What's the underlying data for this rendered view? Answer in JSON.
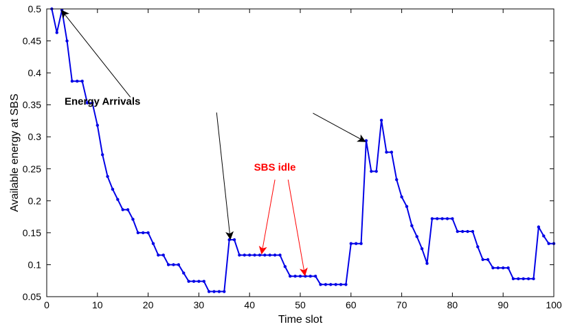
{
  "chart_data": {
    "type": "line",
    "title": "",
    "xlabel": "Time slot",
    "ylabel": "Available energy at SBS",
    "xlim": [
      0,
      100
    ],
    "ylim": [
      0.05,
      0.5
    ],
    "xticks": [
      0,
      10,
      20,
      30,
      40,
      50,
      60,
      70,
      80,
      90,
      100
    ],
    "xtick_labels": [
      "0",
      "10",
      "20",
      "30",
      "40",
      "50",
      "60",
      "70",
      "80",
      "90",
      "100"
    ],
    "yticks": [
      0.05,
      0.1,
      0.15,
      0.2,
      0.25,
      0.3,
      0.35,
      0.4,
      0.45,
      0.5
    ],
    "ytick_labels": [
      "0.05",
      "0.1",
      "0.15",
      "0.2",
      "0.25",
      "0.3",
      "0.35",
      "0.4",
      "0.45",
      "0.5"
    ],
    "grid": false,
    "box": true,
    "series": [
      {
        "color": "#0000e6",
        "marker": "dot",
        "x": [
          1,
          2,
          3,
          4,
          5,
          6,
          7,
          8,
          9,
          10,
          11,
          12,
          13,
          14,
          15,
          16,
          17,
          18,
          19,
          20,
          21,
          22,
          23,
          24,
          25,
          26,
          27,
          28,
          29,
          30,
          31,
          32,
          33,
          34,
          35,
          36,
          37,
          38,
          39,
          40,
          41,
          42,
          43,
          44,
          45,
          46,
          47,
          48,
          49,
          50,
          51,
          52,
          53,
          54,
          55,
          56,
          57,
          58,
          59,
          60,
          61,
          62,
          63,
          64,
          65,
          66,
          67,
          68,
          69,
          70,
          71,
          72,
          73,
          74,
          75,
          76,
          77,
          78,
          79,
          80,
          81,
          82,
          83,
          84,
          85,
          86,
          87,
          88,
          89,
          90,
          91,
          92,
          93,
          94,
          95,
          96,
          97,
          98,
          99,
          100
        ],
        "y": [
          0.5,
          0.463,
          0.498,
          0.45,
          0.387,
          0.387,
          0.387,
          0.353,
          0.353,
          0.318,
          0.272,
          0.238,
          0.218,
          0.202,
          0.186,
          0.186,
          0.171,
          0.15,
          0.15,
          0.15,
          0.133,
          0.115,
          0.115,
          0.1,
          0.1,
          0.1,
          0.087,
          0.074,
          0.074,
          0.074,
          0.074,
          0.058,
          0.058,
          0.058,
          0.058,
          0.139,
          0.139,
          0.115,
          0.115,
          0.115,
          0.115,
          0.115,
          0.115,
          0.115,
          0.115,
          0.115,
          0.097,
          0.082,
          0.082,
          0.082,
          0.082,
          0.082,
          0.082,
          0.069,
          0.069,
          0.069,
          0.069,
          0.069,
          0.069,
          0.133,
          0.133,
          0.133,
          0.294,
          0.246,
          0.246,
          0.326,
          0.276,
          0.276,
          0.233,
          0.206,
          0.191,
          0.161,
          0.144,
          0.125,
          0.102,
          0.172,
          0.172,
          0.172,
          0.172,
          0.172,
          0.152,
          0.152,
          0.152,
          0.152,
          0.128,
          0.108,
          0.108,
          0.095,
          0.095,
          0.095,
          0.095,
          0.078,
          0.078,
          0.078,
          0.078,
          0.078,
          0.159,
          0.145,
          0.133,
          0.133
        ]
      }
    ],
    "annotations": [
      {
        "text": "Energy Arrivals",
        "color": "#000000",
        "text_pos": [
          11,
          0.35
        ],
        "arrows": [
          {
            "from": [
              16.5,
              0.362
            ],
            "to": [
              3,
              0.497
            ]
          },
          {
            "from": [
              33.5,
              0.338
            ],
            "to": [
              36.2,
              0.141
            ]
          },
          {
            "from": [
              52.5,
              0.337
            ],
            "to": [
              62.7,
              0.293
            ]
          }
        ]
      },
      {
        "text": "SBS idle",
        "color": "#ff0000",
        "text_pos": [
          45,
          0.247
        ],
        "arrows": [
          {
            "from": [
              45,
              0.233
            ],
            "to": [
              42.4,
              0.118
            ]
          },
          {
            "from": [
              47.6,
              0.233
            ],
            "to": [
              50.9,
              0.084
            ]
          }
        ]
      }
    ]
  }
}
